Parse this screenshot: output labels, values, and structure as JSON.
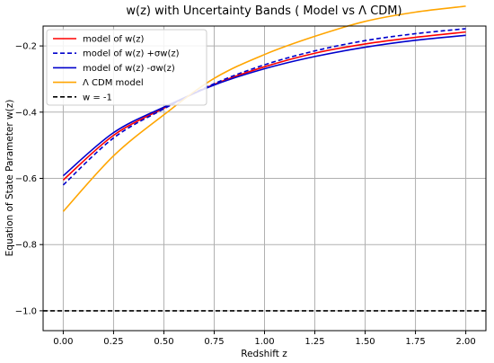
{
  "chart_data": {
    "type": "line",
    "title": "w(z) with Uncertainty Bands ( Model vs Λ CDM)",
    "xlabel": "Redshift z",
    "ylabel": "Equation of State Parameter w(z)",
    "xlim": [
      -0.1,
      2.1
    ],
    "ylim": [
      -1.06,
      -0.14
    ],
    "xticks": [
      0.0,
      0.25,
      0.5,
      0.75,
      1.0,
      1.25,
      1.5,
      1.75,
      2.0
    ],
    "xtick_labels": [
      "0.00",
      "0.25",
      "0.50",
      "0.75",
      "1.00",
      "1.25",
      "1.50",
      "1.75",
      "2.00"
    ],
    "yticks": [
      -1.0,
      -0.8,
      -0.6,
      -0.4,
      -0.2
    ],
    "ytick_labels": [
      "−1.0",
      "−0.8",
      "−0.6",
      "−0.4",
      "−0.2"
    ],
    "grid": true,
    "legend_position": "top-left",
    "series": [
      {
        "name": "model of w(z)",
        "color": "#ff0000",
        "linestyle": "solid",
        "x": [
          0.0,
          0.25,
          0.5,
          0.75,
          1.0,
          1.25,
          1.5,
          1.75,
          2.0
        ],
        "y": [
          -0.605,
          -0.47,
          -0.388,
          -0.316,
          -0.263,
          -0.222,
          -0.194,
          -0.174,
          -0.158
        ]
      },
      {
        "name": "model of w(z) +σw(z)",
        "color": "#0000cc",
        "linestyle": "dashed",
        "x": [
          0.0,
          0.25,
          0.5,
          0.75,
          1.0,
          1.25,
          1.5,
          1.75,
          2.0
        ],
        "y": [
          -0.62,
          -0.478,
          -0.39,
          -0.314,
          -0.257,
          -0.215,
          -0.184,
          -0.163,
          -0.148
        ]
      },
      {
        "name": "model of w(z) -σw(z)",
        "color": "#0000cc",
        "linestyle": "solid",
        "x": [
          0.0,
          0.25,
          0.5,
          0.75,
          1.0,
          1.25,
          1.5,
          1.75,
          2.0
        ],
        "y": [
          -0.592,
          -0.462,
          -0.385,
          -0.318,
          -0.269,
          -0.232,
          -0.204,
          -0.183,
          -0.168
        ]
      },
      {
        "name": "Λ CDM model",
        "color": "#ffa500",
        "linestyle": "solid",
        "x": [
          0.0,
          0.25,
          0.5,
          0.75,
          1.0,
          1.25,
          1.5,
          1.75,
          2.0
        ],
        "y": [
          -0.7,
          -0.532,
          -0.408,
          -0.298,
          -0.226,
          -0.171,
          -0.126,
          -0.098,
          -0.08
        ]
      },
      {
        "name": "w = -1",
        "color": "#000000",
        "linestyle": "dashed",
        "x": [
          -0.1,
          2.1
        ],
        "y": [
          -1.0,
          -1.0
        ]
      }
    ]
  }
}
